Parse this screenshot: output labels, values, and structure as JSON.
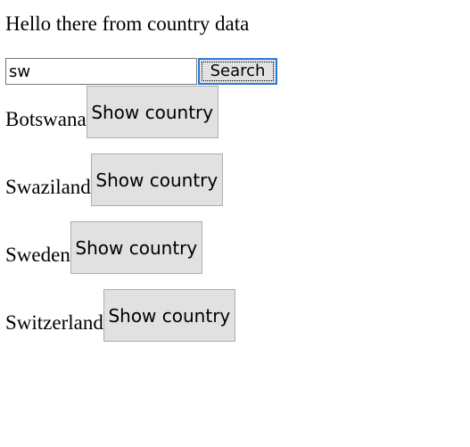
{
  "page": {
    "title": "Hello there from country data"
  },
  "search": {
    "value": "sw",
    "button_label": "Search"
  },
  "countries": [
    {
      "name": "Botswana",
      "button_label": "Show country"
    },
    {
      "name": "Swaziland",
      "button_label": "Show country"
    },
    {
      "name": "Sweden",
      "button_label": "Show country"
    },
    {
      "name": "Switzerland",
      "button_label": "Show country"
    }
  ]
}
